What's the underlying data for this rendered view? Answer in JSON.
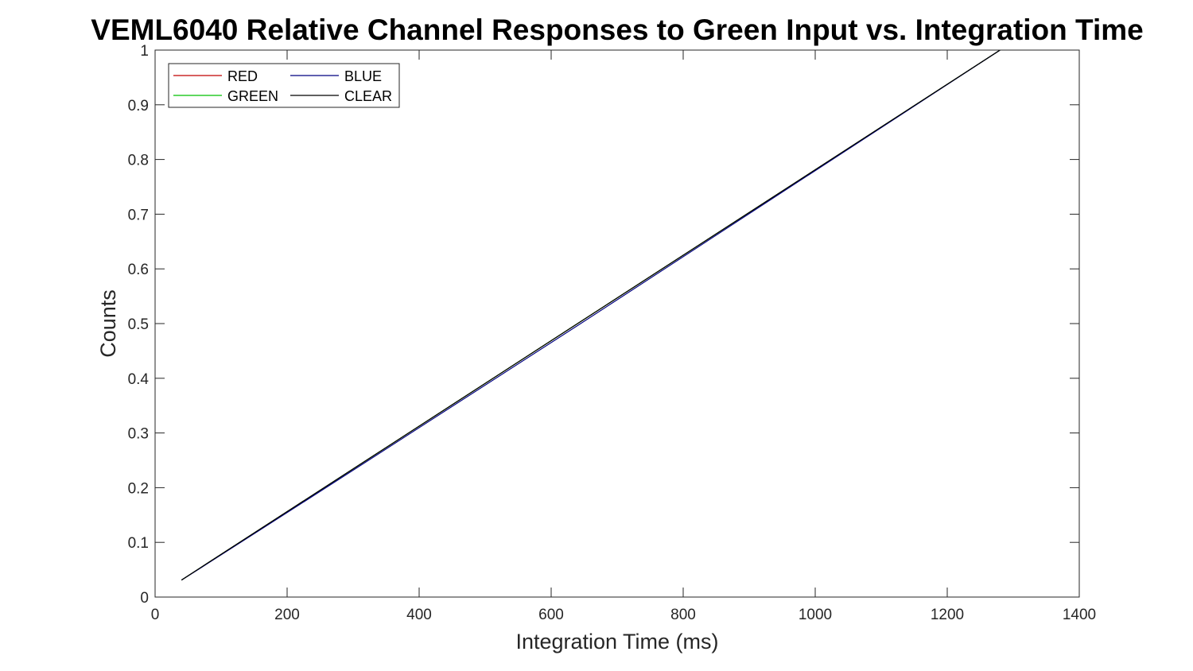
{
  "chart_data": {
    "type": "line",
    "title": "VEML6040 Relative Channel Responses to Green Input vs. Integration Time",
    "xlabel": "Integration Time (ms)",
    "ylabel": "Counts",
    "xlim": [
      0,
      1400
    ],
    "ylim": [
      0,
      1
    ],
    "xticks": [
      0,
      200,
      400,
      600,
      800,
      1000,
      1200,
      1400
    ],
    "yticks": [
      0,
      0.1,
      0.2,
      0.3,
      0.4,
      0.5,
      0.6,
      0.7,
      0.8,
      0.9,
      1
    ],
    "xtick_labels": [
      "0",
      "200",
      "400",
      "600",
      "800",
      "1000",
      "1200",
      "1400"
    ],
    "ytick_labels": [
      "0",
      "0.1",
      "0.2",
      "0.3",
      "0.4",
      "0.5",
      "0.6",
      "0.7",
      "0.8",
      "0.9",
      "1"
    ],
    "grid": false,
    "legend_position": "top-left",
    "series": [
      {
        "name": "RED",
        "color": "#c00000",
        "x": [
          40,
          80,
          160,
          320,
          640,
          1280
        ],
        "y": [
          0.031,
          0.0625,
          0.125,
          0.25,
          0.5,
          1.0
        ]
      },
      {
        "name": "GREEN",
        "color": "#00c000",
        "x": [
          40,
          80,
          160,
          320,
          640,
          1280
        ],
        "y": [
          0.031,
          0.0625,
          0.125,
          0.25,
          0.5,
          1.0
        ]
      },
      {
        "name": "BLUE",
        "color": "#000080",
        "x": [
          40,
          80,
          160,
          320,
          640,
          1280
        ],
        "y": [
          0.031,
          0.0617,
          0.1235,
          0.2475,
          0.4963,
          1.0
        ]
      },
      {
        "name": "CLEAR",
        "color": "#000000",
        "x": [
          40,
          80,
          160,
          320,
          640,
          1280
        ],
        "y": [
          0.031,
          0.0625,
          0.125,
          0.25,
          0.5,
          1.0
        ]
      }
    ]
  }
}
